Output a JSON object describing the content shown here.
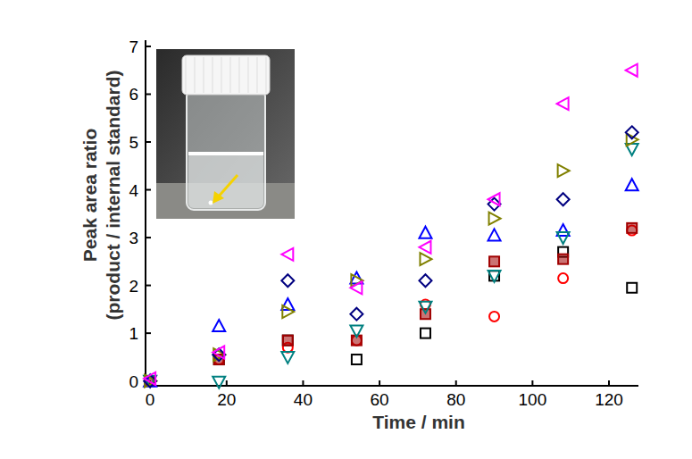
{
  "chart_data": {
    "type": "scatter",
    "xlabel": "Time / min",
    "ylabel": [
      "Peak area ratio",
      "(product / internal standard)"
    ],
    "x": [
      0,
      18,
      36,
      54,
      72,
      90,
      108,
      126
    ],
    "xlim": [
      -1.2,
      127.7
    ],
    "xticks": [
      0,
      20,
      40,
      60,
      80,
      100,
      120
    ],
    "ylim": [
      -0.1,
      7.13
    ],
    "yticks": [
      0,
      1,
      2,
      3,
      4,
      5,
      6,
      7
    ],
    "grid": false,
    "series": [
      {
        "color": "#000000",
        "marker": "square",
        "values": [
          0,
          0.45,
          0.85,
          0.45,
          1.0,
          2.2,
          2.7,
          1.95
        ]
      },
      {
        "color": "#ff0000",
        "marker": "circle",
        "values": [
          0,
          0.45,
          0.7,
          0.85,
          1.6,
          1.35,
          2.15,
          3.15
        ]
      },
      {
        "color": "#a00000",
        "marker": "filled-square",
        "values": [
          0,
          0.45,
          0.85,
          0.85,
          1.4,
          2.5,
          2.55,
          3.2
        ]
      },
      {
        "color": "#0000ff",
        "marker": "triangle-up",
        "values": [
          0,
          1.15,
          1.6,
          2.15,
          3.1,
          3.05,
          3.15,
          4.1
        ]
      },
      {
        "color": "#008080",
        "marker": "triangle-down",
        "values": [
          0,
          -0.02,
          0.5,
          1.05,
          1.55,
          2.2,
          3.0,
          4.85
        ]
      },
      {
        "color": "#808000",
        "marker": "triangle-right",
        "values": [
          0,
          0.55,
          1.45,
          2.1,
          2.55,
          3.4,
          4.4,
          5.05
        ]
      },
      {
        "color": "#000080",
        "marker": "diamond",
        "values": [
          0,
          0.55,
          2.1,
          1.4,
          2.1,
          3.7,
          3.8,
          5.2
        ]
      },
      {
        "color": "#ff00ff",
        "marker": "triangle-left",
        "values": [
          0.05,
          0.6,
          2.65,
          1.95,
          2.8,
          3.8,
          5.8,
          6.5
        ]
      }
    ]
  }
}
